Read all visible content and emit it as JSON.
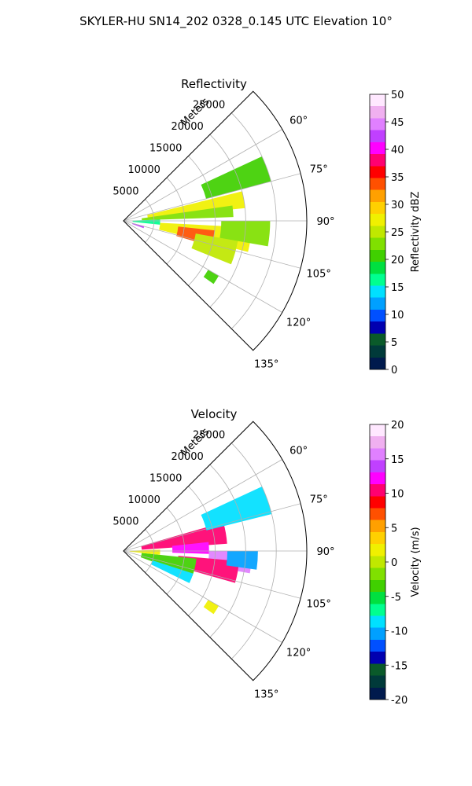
{
  "figure_title": "SKYLER-HU  SN14_202  0328_0.145 UTC Elevation 10°",
  "colors": {
    "grid": "#b0b0b0",
    "frame": "#000000"
  },
  "chart_data": [
    {
      "type": "heatmap",
      "projection": "polar-sector",
      "title": "Reflectivity",
      "radial_label": "Meters",
      "radial_ticks": [
        5000,
        10000,
        15000,
        20000,
        25000
      ],
      "radial_range": [
        0,
        30000
      ],
      "angle_range_deg": [
        45,
        135
      ],
      "angle_ticks_deg": [
        60,
        75,
        90,
        105,
        120,
        135
      ],
      "angle_tick_suffix": "°",
      "colorbar": {
        "label": "Reflectivity dBZ",
        "range": [
          0,
          50
        ],
        "ticks": [
          0,
          5,
          10,
          15,
          20,
          25,
          30,
          35,
          40,
          45,
          50
        ],
        "stops": [
          "#001a4d",
          "#003a3a",
          "#0a5a2a",
          "#0000b0",
          "#0050ff",
          "#00a0ff",
          "#00e0ff",
          "#00ff90",
          "#00e040",
          "#40d000",
          "#80e000",
          "#c0e800",
          "#f0f000",
          "#ffd000",
          "#ffa000",
          "#ff5000",
          "#ff0000",
          "#ff0070",
          "#ff00ff",
          "#c040ff",
          "#e080ff",
          "#f0b0f0",
          "#ffe8ff"
        ]
      },
      "echo_regions": [
        {
          "az": [
            76,
            84
          ],
          "r": [
            4000,
            20000
          ],
          "value": 27
        },
        {
          "az": [
            82,
            88
          ],
          "r": [
            3000,
            18000
          ],
          "value": 22
        },
        {
          "az": [
            93,
            104
          ],
          "r": [
            6000,
            21000
          ],
          "value": 28
        },
        {
          "az": [
            96,
            106
          ],
          "r": [
            9000,
            15000
          ],
          "value": 33
        },
        {
          "az": [
            100,
            112
          ],
          "r": [
            12000,
            19000
          ],
          "value": 24
        },
        {
          "az": [
            88,
            96
          ],
          "r": [
            1500,
            6000
          ],
          "value": 16
        },
        {
          "az": [
            104,
            110
          ],
          "r": [
            1500,
            3500
          ],
          "value": 42
        },
        {
          "az": [
            65,
            75
          ],
          "r": [
            14000,
            25000
          ],
          "value": 20
        },
        {
          "az": [
            90,
            100
          ],
          "r": [
            16000,
            24000
          ],
          "value": 22
        },
        {
          "az": [
            120,
            125
          ],
          "r": [
            16000,
            18000
          ],
          "value": 21
        }
      ]
    },
    {
      "type": "heatmap",
      "projection": "polar-sector",
      "title": "Velocity",
      "radial_label": "Meters",
      "radial_ticks": [
        5000,
        10000,
        15000,
        20000,
        25000
      ],
      "radial_range": [
        0,
        30000
      ],
      "angle_range_deg": [
        45,
        135
      ],
      "angle_ticks_deg": [
        60,
        75,
        90,
        105,
        120,
        135
      ],
      "angle_tick_suffix": "°",
      "colorbar": {
        "label": "Velocity (m/s)",
        "range": [
          -20,
          20
        ],
        "ticks": [
          -20,
          -15,
          -10,
          -5,
          0,
          5,
          10,
          15,
          20
        ],
        "stops": [
          "#001a4d",
          "#003a3a",
          "#0a5a2a",
          "#0000b0",
          "#0050ff",
          "#00a0ff",
          "#00e0ff",
          "#00ff90",
          "#00e040",
          "#40d000",
          "#80e000",
          "#c0e800",
          "#f0f000",
          "#ffd000",
          "#ffa000",
          "#ff5000",
          "#ff0000",
          "#ff0070",
          "#ff00ff",
          "#c040ff",
          "#e080ff",
          "#f0b0f0",
          "#ffe8ff"
        ]
      },
      "echo_regions": [
        {
          "az": [
            74,
            86
          ],
          "r": [
            3000,
            17000
          ],
          "value": 10
        },
        {
          "az": [
            84,
            92
          ],
          "r": [
            8000,
            14000
          ],
          "value": 12
        },
        {
          "az": [
            90,
            100
          ],
          "r": [
            14000,
            21000
          ],
          "value": 15
        },
        {
          "az": [
            95,
            106
          ],
          "r": [
            9000,
            19000
          ],
          "value": 10
        },
        {
          "az": [
            96,
            110
          ],
          "r": [
            3000,
            12000
          ],
          "value": -4
        },
        {
          "az": [
            108,
            116
          ],
          "r": [
            5000,
            12000
          ],
          "value": -9
        },
        {
          "az": [
            88,
            96
          ],
          "r": [
            1000,
            6000
          ],
          "value": 1
        },
        {
          "az": [
            65,
            76
          ],
          "r": [
            14000,
            25000
          ],
          "value": -8
        },
        {
          "az": [
            90,
            98
          ],
          "r": [
            17000,
            22000
          ],
          "value": -10
        },
        {
          "az": [
            120,
            125
          ],
          "r": [
            16000,
            18000
          ],
          "value": 1
        }
      ]
    }
  ]
}
